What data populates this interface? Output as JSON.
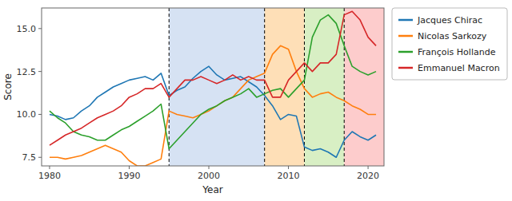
{
  "chart_data": {
    "type": "line",
    "x_label": "Year",
    "y_label": "Score",
    "x": [
      1980,
      1981,
      1982,
      1983,
      1984,
      1985,
      1986,
      1987,
      1988,
      1989,
      1990,
      1991,
      1992,
      1993,
      1994,
      1995,
      1996,
      1997,
      1998,
      1999,
      2000,
      2001,
      2002,
      2003,
      2004,
      2005,
      2006,
      2007,
      2008,
      2009,
      2010,
      2011,
      2012,
      2013,
      2014,
      2015,
      2016,
      2017,
      2018,
      2019,
      2020,
      2021
    ],
    "series": [
      {
        "name": "Jacques Chirac",
        "color": "#1f77b4",
        "values": [
          10.0,
          9.9,
          9.7,
          9.8,
          10.2,
          10.5,
          11.0,
          11.3,
          11.6,
          11.8,
          12.0,
          12.1,
          12.2,
          12.0,
          12.4,
          11.1,
          11.4,
          11.6,
          12.1,
          12.5,
          12.8,
          12.3,
          12.0,
          12.1,
          12.2,
          11.9,
          11.6,
          11.1,
          10.5,
          9.7,
          10.0,
          9.9,
          8.1,
          7.9,
          8.0,
          7.8,
          7.5,
          8.5,
          9.0,
          8.7,
          8.5,
          8.8
        ]
      },
      {
        "name": "Nicolas Sarkozy",
        "color": "#ff7f0e",
        "values": [
          7.5,
          7.5,
          7.4,
          7.5,
          7.6,
          7.8,
          8.0,
          8.2,
          8.0,
          7.8,
          7.3,
          7.0,
          7.0,
          7.2,
          7.4,
          10.2,
          10.0,
          9.9,
          9.8,
          10.0,
          10.2,
          10.5,
          10.8,
          11.0,
          11.5,
          12.0,
          12.2,
          12.4,
          13.5,
          14.0,
          13.8,
          12.5,
          11.5,
          11.0,
          11.2,
          11.3,
          11.0,
          10.8,
          10.5,
          10.3,
          10.0,
          10.0
        ]
      },
      {
        "name": "François Hollande",
        "color": "#2ca02c",
        "values": [
          10.2,
          9.8,
          9.5,
          9.0,
          8.8,
          8.7,
          8.5,
          8.5,
          8.8,
          9.1,
          9.3,
          9.6,
          9.9,
          10.2,
          10.6,
          8.0,
          8.5,
          9.0,
          9.5,
          10.0,
          10.3,
          10.5,
          10.8,
          11.0,
          11.2,
          11.5,
          11.0,
          11.2,
          11.4,
          11.5,
          11.0,
          11.5,
          12.0,
          14.5,
          15.5,
          15.8,
          15.3,
          14.0,
          12.8,
          12.5,
          12.3,
          12.5
        ]
      },
      {
        "name": "Emmanuel Macron",
        "color": "#d62728",
        "values": [
          8.2,
          8.5,
          8.8,
          9.0,
          9.2,
          9.5,
          9.8,
          10.0,
          10.2,
          10.5,
          11.0,
          11.2,
          11.5,
          11.5,
          11.8,
          11.0,
          11.5,
          12.0,
          12.0,
          12.2,
          12.0,
          11.8,
          12.0,
          12.3,
          12.0,
          12.2,
          12.0,
          12.0,
          11.0,
          11.0,
          12.0,
          12.5,
          13.0,
          12.5,
          13.0,
          13.0,
          13.5,
          15.8,
          16.0,
          15.5,
          14.5,
          14.0
        ]
      }
    ],
    "bg_regions": [
      {
        "xstart": 1995,
        "xend": 2007,
        "color": "#AEC6E8"
      },
      {
        "xstart": 2007,
        "xend": 2012,
        "color": "#FDBF6F"
      },
      {
        "xstart": 2012,
        "xend": 2017,
        "color": "#B2DF8A"
      },
      {
        "xstart": 2017,
        "xend": 2022,
        "color": "#FB9A99"
      }
    ],
    "vlines": [
      1995,
      2007,
      2012,
      2017
    ],
    "xlim": [
      1979,
      2022
    ],
    "ylim": [
      7.0,
      16.2
    ],
    "xticks": [
      1980,
      1990,
      2000,
      2010,
      2020
    ],
    "yticks": [
      7.5,
      {
        "value": 10.0,
        "label": "10.0"
      },
      12.5,
      {
        "value": 15.0,
        "label": "15.0"
      }
    ],
    "grid": false,
    "legend": "right"
  }
}
